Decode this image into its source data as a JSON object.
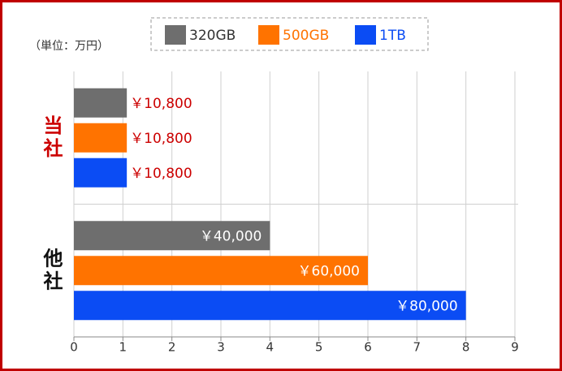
{
  "chart_data": {
    "type": "hbar",
    "unit_label": "（単位：万円）",
    "categories": [
      "当社",
      "他社"
    ],
    "category_colors": [
      "#cc0000",
      "#111111"
    ],
    "series": [
      {
        "name": "320GB",
        "color": "#6e6e6e",
        "values": [
          1.08,
          4
        ],
        "value_labels": [
          "￥10,800",
          "￥40,000"
        ]
      },
      {
        "name": "500GB",
        "color": "#ff7300",
        "values": [
          1.08,
          6
        ],
        "value_labels": [
          "￥10,800",
          "￥60,000"
        ]
      },
      {
        "name": "1TB",
        "color": "#0b4cf4",
        "values": [
          1.08,
          8
        ],
        "value_labels": [
          "￥10,800",
          "￥80,000"
        ]
      }
    ],
    "xlim": [
      0,
      9
    ],
    "xticks": [
      0,
      1,
      2,
      3,
      4,
      5,
      6,
      7,
      8,
      9
    ],
    "grid": true
  }
}
